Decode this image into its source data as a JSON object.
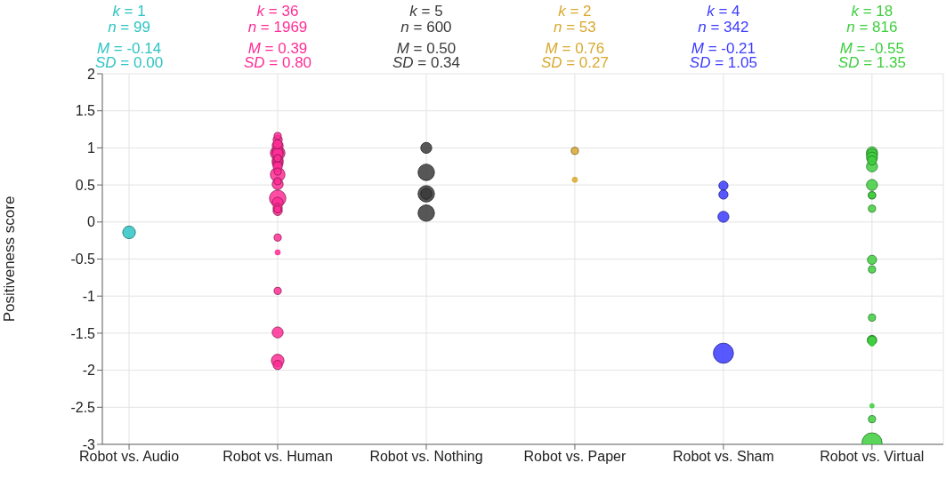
{
  "chart_data": {
    "type": "bubble",
    "ylabel": "Positiveness score",
    "categories": [
      "Robot vs. Audio",
      "Robot vs. Human",
      "Robot vs. Nothing",
      "Robot vs. Paper",
      "Robot vs. Sham",
      "Robot vs. Virtual"
    ],
    "ylim": [
      -3,
      2
    ],
    "yticks": [
      -3,
      -2.5,
      -2,
      -1.5,
      -1,
      -0.5,
      0,
      0.5,
      1,
      1.5,
      2
    ],
    "grid": true,
    "annotations": [
      "k = 1",
      "n = 99",
      "M = -0.14",
      "SD = 0.00",
      "k = 36",
      "n = 1969",
      "M = 0.39",
      "SD = 0.80",
      "k = 5",
      "n = 600",
      "M = 0.50",
      "SD = 0.34",
      "k = 2",
      "n = 53",
      "M = 0.76",
      "SD = 0.27",
      "k = 4",
      "n = 342",
      "M = -0.21",
      "SD = 1.05",
      "k = 18",
      "n = 816",
      "M = -0.55",
      "SD = 1.35"
    ],
    "series": [
      {
        "color": "#2ec4c4",
        "x": [
          "Robot vs. Audio"
        ],
        "values": [
          -0.14
        ],
        "sizes": [
          0.4
        ]
      },
      {
        "color": "#ff2d95",
        "x": [
          "Robot vs. Human",
          "Robot vs. Human",
          "Robot vs. Human",
          "Robot vs. Human",
          "Robot vs. Human",
          "Robot vs. Human",
          "Robot vs. Human",
          "Robot vs. Human",
          "Robot vs. Human",
          "Robot vs. Human",
          "Robot vs. Human",
          "Robot vs. Human",
          "Robot vs. Human",
          "Robot vs. Human",
          "Robot vs. Human",
          "Robot vs. Human",
          "Robot vs. Human",
          "Robot vs. Human",
          "Robot vs. Human",
          "Robot vs. Human",
          "Robot vs. Human",
          "Robot vs. Human",
          "Robot vs. Human",
          "Robot vs. Human",
          "Robot vs. Human",
          "Robot vs. Human",
          "Robot vs. Human"
        ],
        "values": [
          1.16,
          1.11,
          1.05,
          1.03,
          0.95,
          0.93,
          0.92,
          0.86,
          0.83,
          0.8,
          0.78,
          0.75,
          0.68,
          0.64,
          0.55,
          0.51,
          0.32,
          0.26,
          0.15,
          0.19,
          0.17,
          -0.21,
          -0.41,
          -0.93,
          -1.49,
          -1.87,
          -1.93
        ],
        "sizes": [
          0.13,
          0.21,
          0.21,
          0.3,
          0.3,
          0.53,
          0.3,
          0.13,
          0.3,
          0.3,
          0.21,
          0.21,
          0.13,
          0.53,
          0.13,
          0.3,
          0.67,
          0.3,
          0.21,
          0.21,
          0.13,
          0.13,
          0.07,
          0.13,
          0.3,
          0.4,
          0.21
        ]
      },
      {
        "color": "#3a3a3a",
        "x": [
          "Robot vs. Nothing",
          "Robot vs. Nothing",
          "Robot vs. Nothing",
          "Robot vs. Nothing",
          "Robot vs. Nothing"
        ],
        "values": [
          1.0,
          0.67,
          0.38,
          0.38,
          0.12
        ],
        "sizes": [
          0.3,
          0.67,
          0.67,
          0.3,
          0.67
        ]
      },
      {
        "color": "#d9a82e",
        "x": [
          "Robot vs. Paper",
          "Robot vs. Paper"
        ],
        "values": [
          0.96,
          0.57
        ],
        "sizes": [
          0.13,
          0.07
        ]
      },
      {
        "color": "#3b3bff",
        "x": [
          "Robot vs. Sham",
          "Robot vs. Sham",
          "Robot vs. Sham",
          "Robot vs. Sham"
        ],
        "values": [
          0.49,
          0.37,
          0.07,
          -1.77
        ],
        "sizes": [
          0.21,
          0.21,
          0.3,
          1
        ]
      },
      {
        "color": "#3ecf3e",
        "x": [
          "Robot vs. Virtual",
          "Robot vs. Virtual",
          "Robot vs. Virtual",
          "Robot vs. Virtual",
          "Robot vs. Virtual",
          "Robot vs. Virtual",
          "Robot vs. Virtual",
          "Robot vs. Virtual",
          "Robot vs. Virtual",
          "Robot vs. Virtual",
          "Robot vs. Virtual",
          "Robot vs. Virtual",
          "Robot vs. Virtual",
          "Robot vs. Virtual",
          "Robot vs. Virtual",
          "Robot vs. Virtual",
          "Robot vs. Virtual",
          "Robot vs. Virtual"
        ],
        "values": [
          0.94,
          0.91,
          0.87,
          0.83,
          0.75,
          0.5,
          0.36,
          0.36,
          0.18,
          -0.51,
          -0.64,
          -1.29,
          -1.59,
          -1.64,
          -1.6,
          -2.48,
          -2.66,
          -2.98
        ],
        "sizes": [
          0.3,
          0.3,
          0.3,
          0.21,
          0.3,
          0.3,
          0.13,
          0.13,
          0.13,
          0.21,
          0.13,
          0.13,
          0.21,
          0.07,
          0.21,
          0.05,
          0.13,
          1
        ]
      }
    ]
  }
}
